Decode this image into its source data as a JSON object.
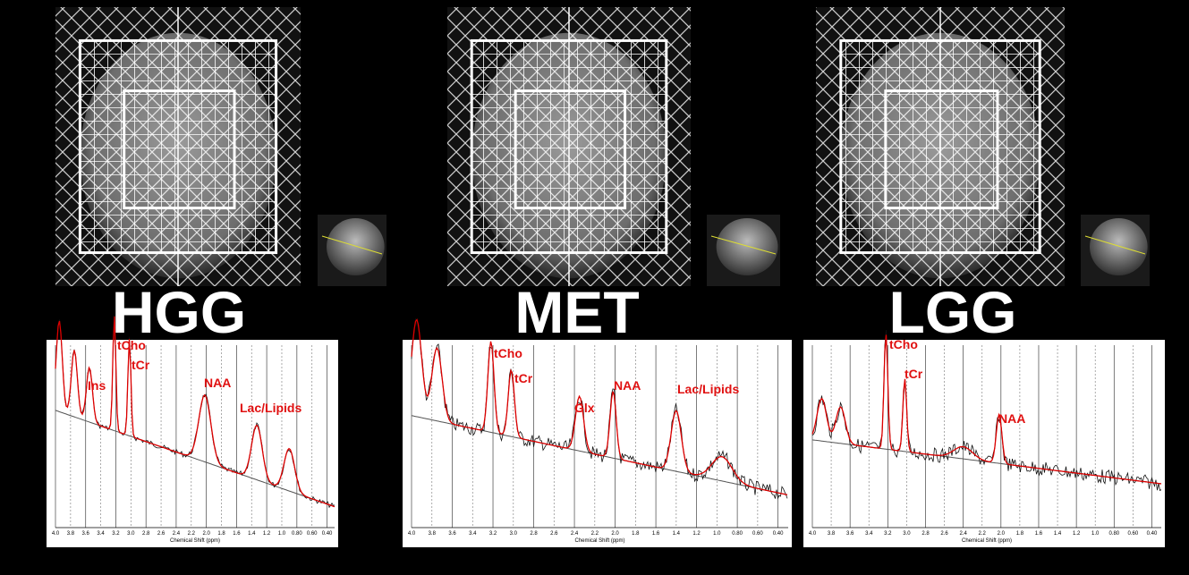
{
  "panels": [
    {
      "label": "HGG",
      "peaks": [
        "Ins",
        "tCho",
        "tCr",
        "NAA",
        "Lac/Lipids"
      ],
      "x_ticks": [
        "4.0",
        "3.8",
        "3.6",
        "3.4",
        "3.2",
        "3.0",
        "2.8",
        "2.6",
        "2.4",
        "2.2",
        "2.0",
        "1.8",
        "1.6",
        "1.4",
        "1.2",
        "1.0",
        "0.80",
        "0.60",
        "0.40"
      ],
      "x_axis_label": "Chemical Shift (ppm)"
    },
    {
      "label": "MET",
      "peaks": [
        "tCho",
        "tCr",
        "Glx",
        "NAA",
        "Lac/Lipids"
      ],
      "x_ticks": [
        "4.0",
        "3.8",
        "3.6",
        "3.4",
        "3.2",
        "3.0",
        "2.8",
        "2.6",
        "2.4",
        "2.2",
        "2.0",
        "1.8",
        "1.6",
        "1.4",
        "1.2",
        "1.0",
        "0.80",
        "0.60",
        "0.40"
      ],
      "x_axis_label": "Chemical Shift (ppm)"
    },
    {
      "label": "LGG",
      "peaks": [
        "tCho",
        "tCr",
        "NAA"
      ],
      "x_ticks": [
        "4.0",
        "3.8",
        "3.6",
        "3.4",
        "3.2",
        "3.0",
        "2.8",
        "2.6",
        "2.4",
        "2.2",
        "2.0",
        "1.8",
        "1.6",
        "1.4",
        "1.2",
        "1.0",
        "0.80",
        "0.60",
        "0.40"
      ],
      "x_axis_label": "Chemical Shift (ppm)"
    }
  ]
}
